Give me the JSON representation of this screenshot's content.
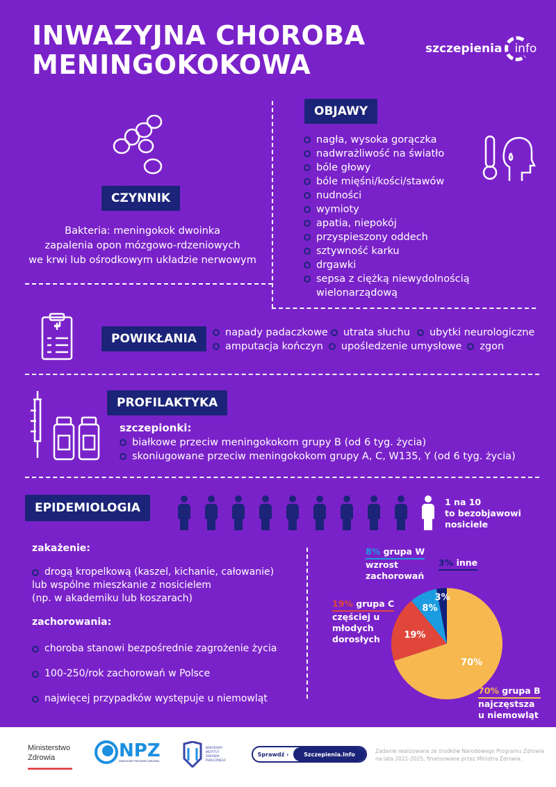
{
  "title": {
    "line1": "INWAZYJNA CHOROBA",
    "line2": "MENINGOKOKOWA"
  },
  "logo": {
    "text": "szczepienia",
    "suffix": "info"
  },
  "czynnik": {
    "heading": "CZYNNIK",
    "lines": [
      "Bakteria: meningokok dwoinka",
      "zapalenia opon mózgowo-rdzeniowych",
      "we krwi lub ośrodkowym układzie nerwowym"
    ],
    "icon": "bacteria-icon"
  },
  "objawy": {
    "heading": "OBJAWY",
    "items": [
      "nagła, wysoka gorączka",
      "nadwrażliwość na światło",
      "bóle głowy",
      "bóle mięśni/kości/stawów",
      "nudności",
      "wymioty",
      "apatia, niepokój",
      "przyspieszony oddech",
      "sztywność karku",
      "drgawki",
      "sepsa z ciężką niewydolnością wielonarządową"
    ],
    "icon": "fever-thermometer-icon"
  },
  "powiklania": {
    "heading": "POWIKŁANIA",
    "row1": [
      "napady padaczkowe",
      "utrata słuchu",
      "ubytki neurologiczne"
    ],
    "row2": [
      "amputacja kończyn",
      "upośledzenie umysłowe",
      "zgon"
    ],
    "icon": "clipboard-medical-icon"
  },
  "profilaktyka": {
    "heading": "PROFILAKTYKA",
    "sub": "szczepionki:",
    "items": [
      "białkowe przeciw meningokokom grupy B (od 6 tyg. życia)",
      "skoniugowane przeciw meningokokom grupy A, C, W135, Y (od 6 tyg. życia)"
    ],
    "icon": "syringe-vials-icon"
  },
  "epidemiologia": {
    "heading": "EPIDEMIOLOGIA",
    "carrier_line1": "1 na 10",
    "carrier_line2": "to bezobjawowi",
    "carrier_line3": "nosiciele",
    "carrier_fraction": 0.1,
    "zakazenie_label": "zakażenie:",
    "zakazenie_lines": [
      "drogą kropelkową (kaszel, kichanie, całowanie)",
      "lub wspólne mieszkanie z nosicielem",
      "(np. w akademiku lub koszarach)"
    ],
    "zachorowania_label": "zachorowania:",
    "zachorowania_items": [
      "choroba stanowi bezpośrednie zagrożenie życia",
      "100-250/rok zachorowań w Polsce",
      "najwięcej przypadków występuje u niemowląt"
    ]
  },
  "chart_data": {
    "type": "pie",
    "slices": [
      {
        "name": "grupa B",
        "value": 70,
        "label": "70%",
        "desc": [
          "najczęstsza",
          "u niemowląt"
        ],
        "color": "#F7B84F"
      },
      {
        "name": "grupa C",
        "value": 19,
        "label": "19%",
        "desc": [
          "częściej u",
          "młodych",
          "dorosłych"
        ],
        "color": "#E0473A"
      },
      {
        "name": "grupa W",
        "value": 8,
        "label": "8%",
        "desc": [
          "wzrost",
          "zachorowań"
        ],
        "color": "#1C9CE0"
      },
      {
        "name": "inne",
        "value": 3,
        "label": "3%",
        "desc": [],
        "color": "#12207A"
      }
    ]
  },
  "footer": {
    "ministry_line1": "Ministerstwo",
    "ministry_line2": "Zdrowia",
    "npz": "NPZ",
    "npz_sub": "NARODOWY PROGRAM ZDROWIA",
    "nizp": "NARODOWY INSTYTUT ZDROWIA PUBLICZNEGO",
    "check_button": "Sprawdź",
    "check_site": "Szczepienia.Info",
    "note_line1": "Zadanie realizowane ze środków Narodowego Programu Zdrowia",
    "note_line2": "na lata 2021-2025, finansowane przez Ministra Zdrowia."
  },
  "colors": {
    "background": "#7A22C9",
    "header_box": "#1B2478"
  }
}
